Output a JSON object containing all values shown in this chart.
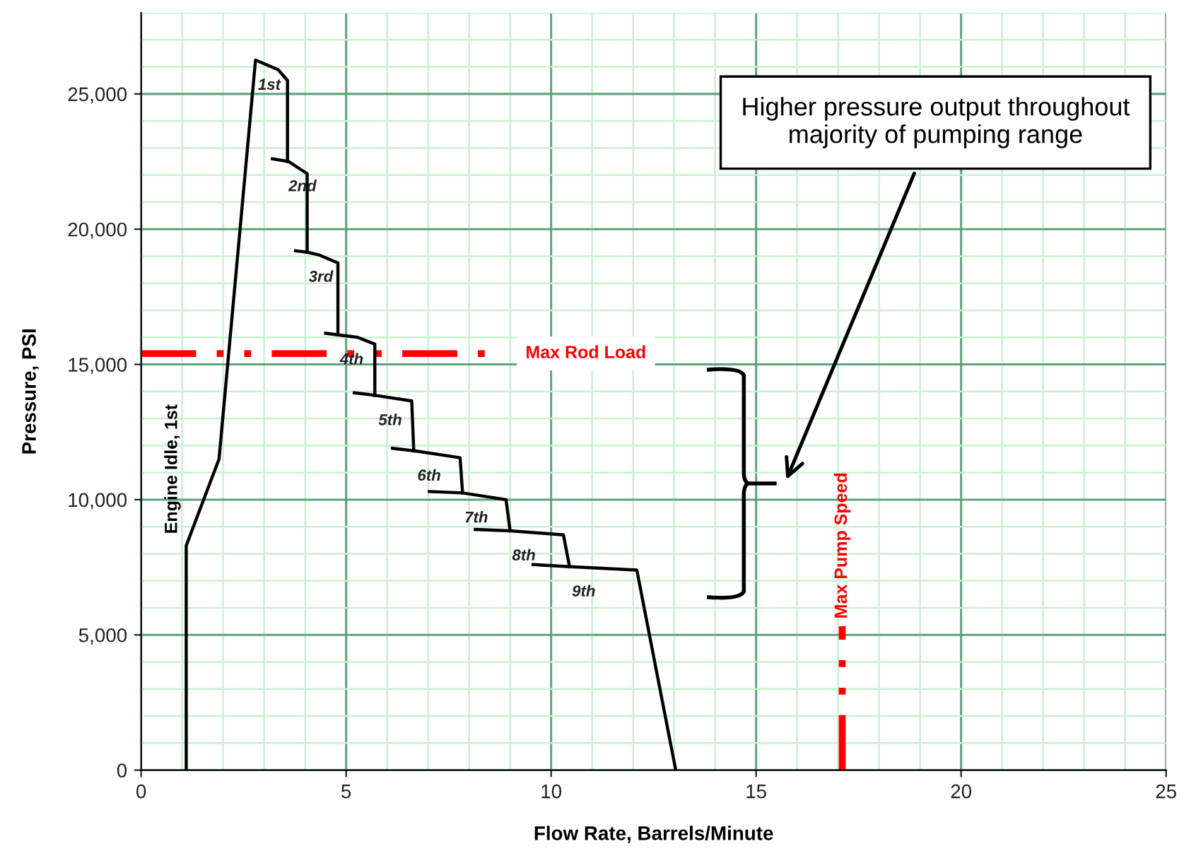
{
  "chart_data": {
    "type": "line",
    "xlabel": "Flow Rate, Barrels/Minute",
    "ylabel": "Pressure, PSI",
    "series": [
      {
        "color": "#000000",
        "x": [
          1.1,
          1.1,
          1.9,
          2.79,
          3.34,
          3.57,
          3.57
        ],
        "values": [
          0,
          8300,
          11500,
          26250,
          25900,
          25500,
          22500
        ]
      },
      {
        "color": "#000000",
        "x": [
          3.2,
          3.6,
          4.05,
          4.05
        ],
        "values": [
          22600,
          22500,
          22050,
          19150
        ]
      },
      {
        "color": "#000000",
        "x": [
          3.77,
          4.05,
          4.33,
          4.8,
          4.8
        ],
        "values": [
          19200,
          19150,
          19050,
          18750,
          16100
        ]
      },
      {
        "color": "#000000",
        "x": [
          4.5,
          5.28,
          5.7,
          5.7
        ],
        "values": [
          16150,
          16000,
          15750,
          13850
        ]
      },
      {
        "color": "#000000",
        "x": [
          5.2,
          5.74,
          6.6,
          6.65
        ],
        "values": [
          13950,
          13850,
          13650,
          11800
        ]
      },
      {
        "color": "#000000",
        "x": [
          6.13,
          6.69,
          7.78,
          7.84
        ],
        "values": [
          11900,
          11800,
          11550,
          10250
        ]
      },
      {
        "color": "#000000",
        "x": [
          7.03,
          7.84,
          8.9,
          9.0
        ],
        "values": [
          10300,
          10250,
          10000,
          8850
        ]
      },
      {
        "color": "#000000",
        "x": [
          8.15,
          9.0,
          10.3,
          10.45
        ],
        "values": [
          8900,
          8850,
          8700,
          7520
        ]
      },
      {
        "color": "#000000",
        "x": [
          9.56,
          10.46,
          12.09,
          13.04
        ],
        "values": [
          7600,
          7520,
          7400,
          0
        ]
      }
    ],
    "xlim": [
      0,
      25
    ],
    "xticks": [
      0,
      {
        "value": 1,
        "label": null
      },
      {
        "value": 2,
        "label": null
      },
      {
        "value": 3,
        "label": null
      },
      {
        "value": 4,
        "label": null
      },
      5,
      {
        "value": 6,
        "label": null
      },
      {
        "value": 7,
        "label": null
      },
      {
        "value": 8,
        "label": null
      },
      {
        "value": 9,
        "label": null
      },
      10,
      {
        "value": 11,
        "label": null
      },
      {
        "value": 12,
        "label": null
      },
      {
        "value": 13,
        "label": null
      },
      {
        "value": 14,
        "label": null
      },
      15,
      {
        "value": 16,
        "label": null
      },
      {
        "value": 17,
        "label": null
      },
      {
        "value": 18,
        "label": null
      },
      {
        "value": 19,
        "label": null
      },
      20,
      {
        "value": 21,
        "label": null
      },
      {
        "value": 22,
        "label": null
      },
      {
        "value": 23,
        "label": null
      },
      {
        "value": 24,
        "label": null
      },
      25
    ],
    "ylim": [
      0,
      28000
    ],
    "yticks": [
      0,
      {
        "value": 1000,
        "label": null
      },
      {
        "value": 2000,
        "label": null
      },
      {
        "value": 3000,
        "label": null
      },
      {
        "value": 4000,
        "label": null
      },
      {
        "value": 5000,
        "label": "5,000"
      },
      {
        "value": 6000,
        "label": null
      },
      {
        "value": 7000,
        "label": null
      },
      {
        "value": 8000,
        "label": null
      },
      {
        "value": 9000,
        "label": null
      },
      {
        "value": 10000,
        "label": "10,000"
      },
      {
        "value": 11000,
        "label": null
      },
      {
        "value": 12000,
        "label": null
      },
      {
        "value": 13000,
        "label": null
      },
      {
        "value": 14000,
        "label": null
      },
      {
        "value": 15000,
        "label": "15,000"
      },
      {
        "value": 16000,
        "label": null
      },
      {
        "value": 17000,
        "label": null
      },
      {
        "value": 18000,
        "label": null
      },
      {
        "value": 19000,
        "label": null
      },
      {
        "value": 20000,
        "label": "20,000"
      },
      {
        "value": 21000,
        "label": null
      },
      {
        "value": 22000,
        "label": null
      },
      {
        "value": 23000,
        "label": null
      },
      {
        "value": 24000,
        "label": null
      },
      {
        "value": 25000,
        "label": "25,000"
      },
      {
        "value": 26000,
        "label": null
      },
      {
        "value": 27000,
        "label": null
      },
      {
        "value": 28000,
        "label": null
      }
    ],
    "grid": true,
    "marker": "none",
    "line_style": "solid",
    "legend": false,
    "ref_lines": [
      {
        "axis": "y",
        "value": 15400,
        "label": "Max Rod Load",
        "color": "#ff0000",
        "line_style": "dashed"
      },
      {
        "axis": "x",
        "value": 17.1,
        "label": "Max Pump Speed",
        "color": "#ff0000",
        "line_style": "dashed"
      }
    ],
    "annotations": [
      {
        "text": "1st",
        "x": 2.79,
        "y": 26250
      },
      {
        "text": "2nd",
        "x": 3.6,
        "y": 22500
      },
      {
        "text": "3rd",
        "x": 4.05,
        "y": 19150
      },
      {
        "text": "4th",
        "x": 4.8,
        "y": 16100
      },
      {
        "text": "5th",
        "x": 5.74,
        "y": 13850
      },
      {
        "text": "6th",
        "x": 6.69,
        "y": 11800
      },
      {
        "text": "7th",
        "x": 7.84,
        "y": 10250
      },
      {
        "text": "8th",
        "x": 9.0,
        "y": 8850
      },
      {
        "text": "9th",
        "x": 10.46,
        "y": 7520
      },
      {
        "text": "Engine Idle, 1st",
        "x": 1.1,
        "y": 8300
      },
      "Higher pressure output throughout\nmajority of pumping range"
    ]
  }
}
